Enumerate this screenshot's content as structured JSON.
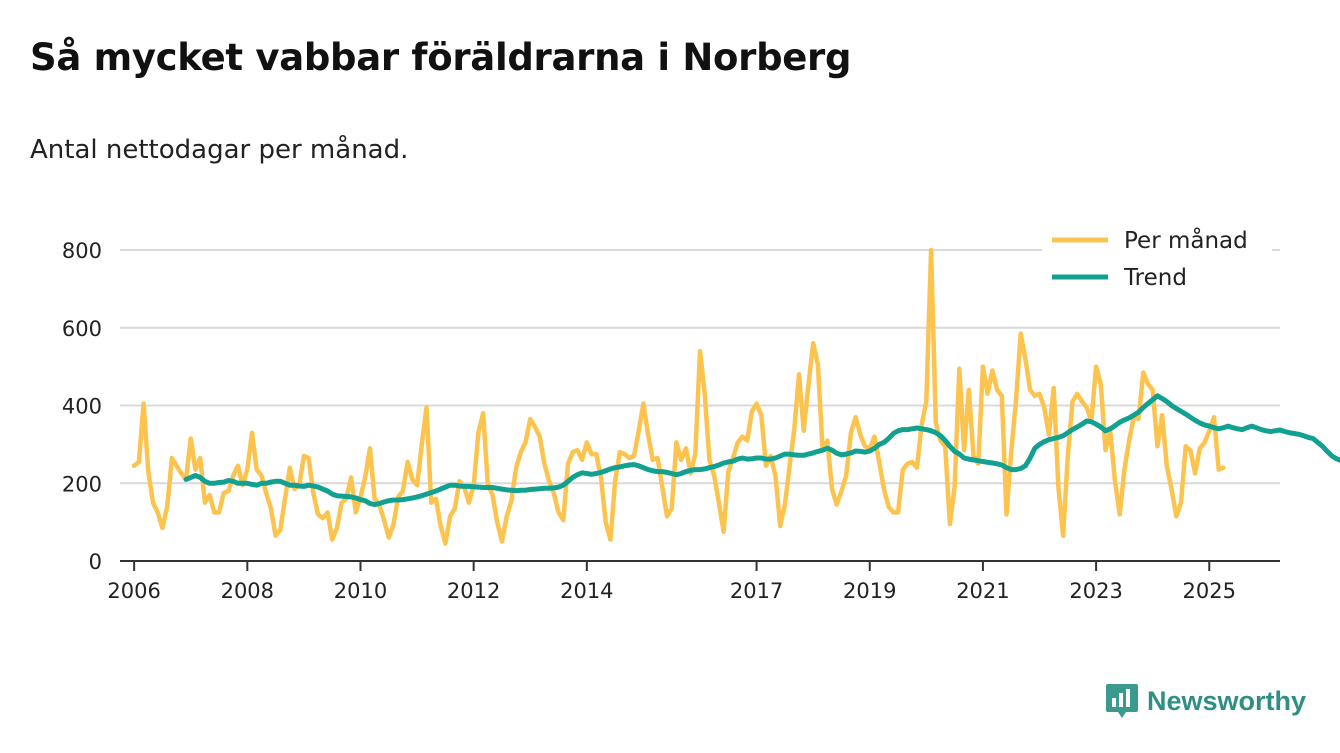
{
  "title": "Så mycket vabbar föräldrarna i Norberg",
  "subtitle": "Antal nettodagar per månad.",
  "brand": "Newsworthy",
  "colors": {
    "monthly": "#fcc44f",
    "trend": "#12a191",
    "grid": "#d9d9d9",
    "axis": "#333333",
    "brand": "#2f8f84"
  },
  "chart_data": {
    "type": "line",
    "title": "Så mycket vabbar föräldrarna i Norberg",
    "xlabel": "",
    "ylabel": "",
    "xlim": [
      2005.75,
      2026.25
    ],
    "ylim": [
      0,
      800
    ],
    "yticks": [
      0,
      200,
      400,
      600,
      800
    ],
    "xticks": [
      {
        "value": 2006,
        "label": "2006"
      },
      {
        "value": 2008,
        "label": "2008"
      },
      {
        "value": 2010,
        "label": "2010"
      },
      {
        "value": 2012,
        "label": "2012"
      },
      {
        "value": 2014,
        "label": "2014"
      },
      {
        "value": 2017,
        "label": "2017"
      },
      {
        "value": 2019,
        "label": "2019"
      },
      {
        "value": 2021,
        "label": "2021"
      },
      {
        "value": 2023,
        "label": "2023"
      },
      {
        "value": 2025,
        "label": "2025"
      }
    ],
    "legend": {
      "position": "top-right",
      "entries": [
        "Per månad",
        "Trend"
      ]
    },
    "series": [
      {
        "name": "Per månad",
        "start": 2006.0,
        "step": 0.0833333,
        "values": [
          245,
          255,
          405,
          230,
          150,
          125,
          85,
          140,
          265,
          245,
          225,
          210,
          315,
          235,
          265,
          150,
          170,
          125,
          125,
          175,
          180,
          220,
          245,
          195,
          235,
          330,
          235,
          220,
          175,
          135,
          65,
          80,
          160,
          240,
          185,
          195,
          270,
          265,
          175,
          120,
          110,
          125,
          55,
          85,
          150,
          160,
          215,
          125,
          165,
          215,
          290,
          160,
          145,
          105,
          60,
          95,
          165,
          180,
          255,
          210,
          195,
          300,
          395,
          150,
          160,
          90,
          45,
          115,
          135,
          205,
          190,
          150,
          195,
          330,
          380,
          200,
          170,
          100,
          50,
          115,
          155,
          240,
          280,
          305,
          365,
          345,
          320,
          250,
          205,
          175,
          125,
          105,
          250,
          280,
          285,
          260,
          305,
          275,
          275,
          215,
          100,
          55,
          205,
          280,
          275,
          265,
          270,
          335,
          405,
          325,
          260,
          265,
          190,
          115,
          135,
          305,
          260,
          290,
          225,
          275,
          540,
          430,
          260,
          220,
          150,
          75,
          230,
          265,
          305,
          320,
          310,
          385,
          405,
          375,
          245,
          270,
          220,
          90,
          145,
          245,
          340,
          480,
          335,
          455,
          560,
          505,
          285,
          310,
          185,
          145,
          180,
          220,
          330,
          370,
          325,
          295,
          290,
          320,
          255,
          185,
          140,
          125,
          125,
          235,
          250,
          255,
          240,
          350,
          410,
          800,
          355,
          310,
          295,
          95,
          190,
          495,
          285,
          440,
          270,
          250,
          500,
          430,
          490,
          440,
          425,
          120,
          280,
          410,
          585,
          520,
          440,
          425,
          430,
          395,
          325,
          445,
          190,
          65,
          270,
          410,
          430,
          410,
          395,
          360,
          500,
          455,
          285,
          335,
          205,
          120,
          235,
          310,
          370,
          365,
          485,
          455,
          440,
          295,
          375,
          245,
          185,
          115,
          150,
          295,
          285,
          225,
          290,
          305,
          335,
          370,
          235,
          240
        ]
      },
      {
        "name": "Trend",
        "start": 2006.917,
        "step": 0.0833333,
        "values": [
          210,
          215,
          220,
          215,
          205,
          200,
          200,
          202,
          203,
          207,
          205,
          200,
          200,
          200,
          197,
          195,
          200,
          200,
          203,
          205,
          205,
          200,
          195,
          195,
          193,
          192,
          195,
          193,
          190,
          185,
          180,
          172,
          168,
          167,
          166,
          165,
          162,
          158,
          155,
          148,
          145,
          148,
          152,
          155,
          157,
          157,
          158,
          160,
          162,
          165,
          168,
          172,
          176,
          180,
          185,
          190,
          195,
          195,
          193,
          192,
          192,
          191,
          190,
          189,
          189,
          189,
          187,
          185,
          183,
          182,
          181,
          182,
          182,
          184,
          185,
          186,
          187,
          187,
          188,
          190,
          195,
          205,
          215,
          222,
          227,
          225,
          223,
          225,
          228,
          232,
          237,
          240,
          242,
          245,
          247,
          248,
          245,
          240,
          235,
          232,
          230,
          230,
          228,
          225,
          222,
          225,
          230,
          233,
          235,
          235,
          237,
          240,
          243,
          247,
          252,
          255,
          257,
          262,
          265,
          262,
          263,
          265,
          265,
          262,
          262,
          265,
          270,
          275,
          275,
          273,
          272,
          272,
          275,
          278,
          282,
          285,
          290,
          285,
          277,
          273,
          275,
          278,
          283,
          282,
          280,
          283,
          290,
          300,
          305,
          315,
          328,
          335,
          338,
          338,
          340,
          342,
          340,
          338,
          335,
          330,
          322,
          310,
          295,
          282,
          275,
          265,
          262,
          260,
          258,
          256,
          254,
          252,
          250,
          247,
          240,
          235,
          235,
          238,
          245,
          265,
          290,
          300,
          307,
          312,
          315,
          318,
          322,
          330,
          338,
          345,
          352,
          360,
          358,
          352,
          345,
          335,
          340,
          348,
          357,
          363,
          368,
          375,
          383,
          395,
          405,
          415,
          425,
          418,
          410,
          400,
          392,
          385,
          378,
          370,
          362,
          355,
          350,
          347,
          343,
          340,
          343,
          347,
          343,
          340,
          338,
          343,
          347,
          343,
          338,
          335,
          333,
          335,
          337,
          333,
          330,
          328,
          326,
          322,
          318,
          315,
          305,
          295,
          282,
          270,
          263,
          258
        ]
      }
    ]
  }
}
